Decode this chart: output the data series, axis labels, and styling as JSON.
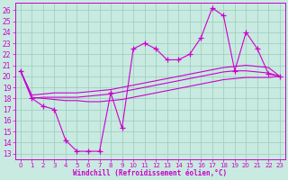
{
  "bg_color": "#c8eae0",
  "grid_color": "#99ccbb",
  "line_color": "#cc00cc",
  "xlabel": "Windchill (Refroidissement éolien,°C)",
  "xlim": [
    -0.5,
    23.5
  ],
  "ylim": [
    12.5,
    26.7
  ],
  "xticks": [
    0,
    1,
    2,
    3,
    4,
    5,
    6,
    7,
    8,
    9,
    10,
    11,
    12,
    13,
    14,
    15,
    16,
    17,
    18,
    19,
    20,
    21,
    22,
    23
  ],
  "yticks": [
    13,
    14,
    15,
    16,
    17,
    18,
    19,
    20,
    21,
    22,
    23,
    24,
    25,
    26
  ],
  "curve_x": [
    0,
    1,
    2,
    3,
    4,
    5,
    6,
    7,
    8,
    9,
    10,
    11,
    12,
    13,
    14,
    15,
    16,
    17,
    18,
    19,
    20,
    21,
    22,
    23
  ],
  "curve_y": [
    20.5,
    18.0,
    17.3,
    17.0,
    14.2,
    13.2,
    13.2,
    13.2,
    18.5,
    15.3,
    22.5,
    23.0,
    22.5,
    21.5,
    21.5,
    22.0,
    23.5,
    26.2,
    25.5,
    20.5,
    24.0,
    22.5,
    20.2,
    20.0
  ],
  "upper_x": [
    0,
    1,
    2,
    3,
    4,
    5,
    6,
    7,
    8,
    9,
    10,
    11,
    12,
    13,
    14,
    15,
    16,
    17,
    18,
    19,
    20,
    21,
    22,
    23
  ],
  "upper_y": [
    20.5,
    18.3,
    18.4,
    18.5,
    18.5,
    18.5,
    18.6,
    18.7,
    18.8,
    19.0,
    19.2,
    19.4,
    19.6,
    19.8,
    20.0,
    20.2,
    20.4,
    20.6,
    20.8,
    20.9,
    21.0,
    20.9,
    20.8,
    20.0
  ],
  "lower_x": [
    0,
    1,
    2,
    3,
    4,
    5,
    6,
    7,
    8,
    9,
    10,
    11,
    12,
    13,
    14,
    15,
    16,
    17,
    18,
    19,
    20,
    21,
    22,
    23
  ],
  "lower_y": [
    20.5,
    18.0,
    18.1,
    18.1,
    18.1,
    18.1,
    18.2,
    18.3,
    18.4,
    18.6,
    18.8,
    19.0,
    19.2,
    19.4,
    19.6,
    19.8,
    20.0,
    20.2,
    20.4,
    20.5,
    20.5,
    20.4,
    20.3,
    20.0
  ],
  "base_x": [
    0,
    1,
    2,
    3,
    4,
    5,
    6,
    7,
    8,
    9,
    10,
    11,
    12,
    13,
    14,
    15,
    16,
    17,
    18,
    19,
    20,
    21,
    22,
    23
  ],
  "base_y": [
    20.5,
    18.1,
    18.0,
    17.9,
    17.8,
    17.8,
    17.7,
    17.7,
    17.8,
    17.9,
    18.1,
    18.3,
    18.5,
    18.7,
    18.9,
    19.1,
    19.3,
    19.5,
    19.7,
    19.8,
    19.9,
    19.9,
    19.9,
    20.0
  ]
}
